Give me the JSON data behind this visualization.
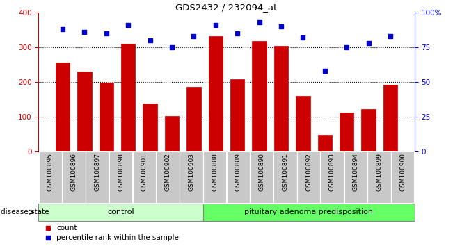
{
  "title": "GDS2432 / 232094_at",
  "samples": [
    "GSM100895",
    "GSM100896",
    "GSM100897",
    "GSM100898",
    "GSM100901",
    "GSM100902",
    "GSM100903",
    "GSM100888",
    "GSM100889",
    "GSM100890",
    "GSM100891",
    "GSM100892",
    "GSM100893",
    "GSM100894",
    "GSM100899",
    "GSM100900"
  ],
  "bar_values": [
    255,
    230,
    198,
    310,
    137,
    102,
    185,
    332,
    208,
    318,
    303,
    160,
    47,
    112,
    122,
    192
  ],
  "scatter_values": [
    88,
    86,
    85,
    91,
    80,
    75,
    83,
    91,
    85,
    93,
    90,
    82,
    58,
    75,
    78,
    83
  ],
  "bar_color": "#cc0000",
  "scatter_color": "#0000cc",
  "ylim_left": [
    0,
    400
  ],
  "ylim_right": [
    0,
    100
  ],
  "yticks_left": [
    0,
    100,
    200,
    300,
    400
  ],
  "yticks_right": [
    0,
    25,
    50,
    75,
    100
  ],
  "yticklabels_right": [
    "0",
    "25",
    "50",
    "75",
    "100%"
  ],
  "grid_values": [
    100,
    200,
    300
  ],
  "control_count": 7,
  "control_label": "control",
  "disease_label": "pituitary adenoma predisposition",
  "disease_state_label": "disease state",
  "legend_bar_label": "count",
  "legend_scatter_label": "percentile rank within the sample",
  "control_color": "#ccffcc",
  "disease_color": "#66ff66",
  "tick_label_color_left": "#cc0000",
  "tick_label_color_right": "#0000cc",
  "title_color": "#000000",
  "background_color": "#ffffff",
  "xtick_bg_color": "#c8c8c8"
}
